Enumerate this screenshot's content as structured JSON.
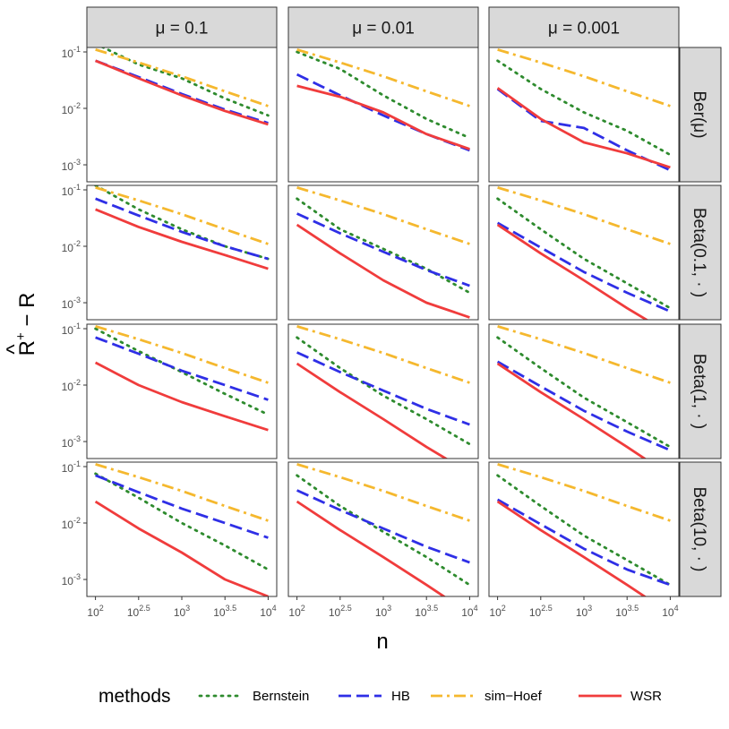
{
  "chart_data": {
    "type": "line",
    "facet_cols": [
      "μ = 0.1",
      "μ = 0.01",
      "μ = 0.001"
    ],
    "facet_rows": [
      "Ber(μ)",
      "Beta(0.1, · )",
      "Beta(1, · )",
      "Beta(10, · )"
    ],
    "x_scale": "log10",
    "y_scale": "log10",
    "xlim": [
      100,
      10000
    ],
    "ylim": [
      0.0005,
      0.12
    ],
    "x_ticks": [
      {
        "base": "10",
        "exp": "2",
        "value": 100
      },
      {
        "base": "10",
        "exp": "2.5",
        "value": 316.2
      },
      {
        "base": "10",
        "exp": "3",
        "value": 1000
      },
      {
        "base": "10",
        "exp": "3.5",
        "value": 3162.3
      },
      {
        "base": "10",
        "exp": "4",
        "value": 10000
      }
    ],
    "y_ticks": [
      {
        "base": "10",
        "exp": "-1",
        "value": 0.1
      },
      {
        "base": "10",
        "exp": "-2",
        "value": 0.01
      },
      {
        "base": "10",
        "exp": "-3",
        "value": 0.001
      }
    ],
    "xlabel": "n",
    "ylabel": {
      "main": "R",
      "hat": "^",
      "sup": "+",
      "rest": " − R"
    },
    "legend": {
      "title": "methods",
      "position": "bottom",
      "items": [
        {
          "name": "Bernstein",
          "color": "#2e8b2e",
          "dash": "dotted"
        },
        {
          "name": "HB",
          "color": "#2f2fe6",
          "dash": "longdash"
        },
        {
          "name": "sim−Hoef",
          "color": "#f5b82e",
          "dash": "dotdash"
        },
        {
          "name": "WSR",
          "color": "#f03c3c",
          "dash": "solid"
        }
      ]
    },
    "x": [
      100,
      316.2,
      1000,
      3162.3,
      10000
    ],
    "panels": [
      [
        {
          "Bernstein": [
            0.14,
            0.06,
            0.034,
            0.015,
            0.0075
          ],
          "HB": [
            0.07,
            0.036,
            0.018,
            0.0095,
            0.0055
          ],
          "sim-Hoef": [
            0.11,
            0.065,
            0.037,
            0.02,
            0.011
          ],
          "WSR": [
            0.07,
            0.034,
            0.017,
            0.009,
            0.0052
          ]
        },
        {
          "Bernstein": [
            0.1,
            0.05,
            0.017,
            0.0065,
            0.003
          ],
          "HB": [
            0.04,
            0.017,
            0.0075,
            0.0035,
            0.0018
          ],
          "sim-Hoef": [
            0.11,
            0.065,
            0.037,
            0.02,
            0.011
          ],
          "WSR": [
            0.025,
            0.016,
            0.0085,
            0.0035,
            0.0019
          ]
        },
        {
          "Bernstein": [
            0.07,
            0.022,
            0.0085,
            0.004,
            0.0015
          ],
          "HB": [
            0.022,
            0.006,
            0.0045,
            0.0018,
            0.0008
          ],
          "sim-Hoef": [
            0.11,
            0.065,
            0.037,
            0.02,
            0.011
          ],
          "WSR": [
            0.023,
            0.0065,
            0.0025,
            0.0016,
            0.0009
          ]
        }
      ],
      [
        {
          "Bernstein": [
            0.12,
            0.045,
            0.02,
            0.01,
            0.006
          ],
          "HB": [
            0.07,
            0.035,
            0.018,
            0.01,
            0.006
          ],
          "sim-Hoef": [
            0.11,
            0.065,
            0.037,
            0.02,
            0.011
          ],
          "WSR": [
            0.045,
            0.022,
            0.012,
            0.007,
            0.004
          ]
        },
        {
          "Bernstein": [
            0.07,
            0.02,
            0.009,
            0.004,
            0.0015
          ],
          "HB": [
            0.038,
            0.017,
            0.008,
            0.0038,
            0.002
          ],
          "sim-Hoef": [
            0.11,
            0.065,
            0.037,
            0.02,
            0.011
          ],
          "WSR": [
            0.024,
            0.0075,
            0.0025,
            0.001,
            0.00055
          ]
        },
        {
          "Bernstein": [
            0.07,
            0.02,
            0.006,
            0.0022,
            0.0008
          ],
          "HB": [
            0.026,
            0.0095,
            0.0035,
            0.0015,
            0.0007
          ],
          "sim-Hoef": [
            0.11,
            0.065,
            0.037,
            0.02,
            0.011
          ],
          "WSR": [
            0.024,
            0.0075,
            0.0025,
            0.0008,
            0.00028
          ]
        }
      ],
      [
        {
          "Bernstein": [
            0.1,
            0.04,
            0.017,
            0.007,
            0.003
          ],
          "HB": [
            0.07,
            0.036,
            0.018,
            0.01,
            0.0055
          ],
          "sim-Hoef": [
            0.11,
            0.065,
            0.037,
            0.02,
            0.011
          ],
          "WSR": [
            0.025,
            0.01,
            0.005,
            0.0028,
            0.0016
          ]
        },
        {
          "Bernstein": [
            0.07,
            0.02,
            0.0065,
            0.0025,
            0.0009
          ],
          "HB": [
            0.038,
            0.017,
            0.008,
            0.0038,
            0.002
          ],
          "sim-Hoef": [
            0.11,
            0.065,
            0.037,
            0.02,
            0.011
          ],
          "WSR": [
            0.024,
            0.0075,
            0.0025,
            0.0008,
            0.00028
          ]
        },
        {
          "Bernstein": [
            0.07,
            0.02,
            0.006,
            0.0022,
            0.0008
          ],
          "HB": [
            0.026,
            0.0095,
            0.0035,
            0.0015,
            0.0007
          ],
          "sim-Hoef": [
            0.11,
            0.065,
            0.037,
            0.02,
            0.011
          ],
          "WSR": [
            0.024,
            0.0075,
            0.0025,
            0.0008,
            0.00025
          ]
        }
      ],
      [
        {
          "Bernstein": [
            0.075,
            0.028,
            0.01,
            0.004,
            0.0015
          ],
          "HB": [
            0.07,
            0.035,
            0.018,
            0.01,
            0.0055
          ],
          "sim-Hoef": [
            0.11,
            0.065,
            0.037,
            0.02,
            0.011
          ],
          "WSR": [
            0.024,
            0.008,
            0.003,
            0.001,
            0.0005
          ]
        },
        {
          "Bernstein": [
            0.07,
            0.02,
            0.007,
            0.0025,
            0.0008
          ],
          "HB": [
            0.038,
            0.017,
            0.008,
            0.0038,
            0.002
          ],
          "sim-Hoef": [
            0.11,
            0.065,
            0.037,
            0.02,
            0.011
          ],
          "WSR": [
            0.024,
            0.0075,
            0.0025,
            0.0008,
            0.00025
          ]
        },
        {
          "Bernstein": [
            0.07,
            0.02,
            0.006,
            0.0022,
            0.0008
          ],
          "HB": [
            0.026,
            0.0095,
            0.0035,
            0.0015,
            0.0008
          ],
          "sim-Hoef": [
            0.11,
            0.065,
            0.037,
            0.02,
            0.011
          ],
          "WSR": [
            0.024,
            0.0075,
            0.0025,
            0.0008,
            0.00025
          ]
        }
      ]
    ]
  }
}
